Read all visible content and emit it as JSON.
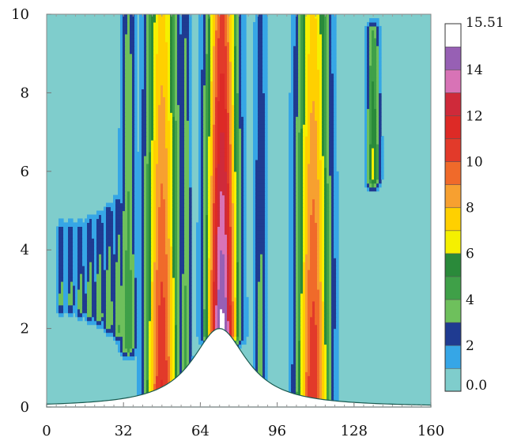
{
  "chart_data": {
    "type": "contour",
    "title": "",
    "xlabel": "",
    "ylabel": "",
    "xlim": [
      0,
      160
    ],
    "ylim": [
      0,
      10
    ],
    "x_ticks": [
      "0",
      "32",
      "64",
      "96",
      "128",
      "160"
    ],
    "y_ticks": [
      "0",
      "2",
      "4",
      "6",
      "8",
      "10"
    ],
    "terrain": {
      "shape": "bell-shaped hill",
      "center_x": 72,
      "peak_height": 2.0
    },
    "colorbar": {
      "position": "right",
      "min": 0.0,
      "max": 15.51,
      "tick_labels": [
        "0.0",
        "2",
        "4",
        "6",
        "8",
        "10",
        "12",
        "14",
        "15.51"
      ],
      "levels": [
        0,
        1,
        2,
        3,
        4,
        5,
        6,
        7,
        8,
        9,
        10,
        11,
        12,
        13,
        14,
        15,
        15.51
      ],
      "colors": [
        "#7fcdcc",
        "#36a6e6",
        "#1f3b91",
        "#6ec05c",
        "#3fa048",
        "#2a8a3a",
        "#f5f000",
        "#ffd000",
        "#f7a030",
        "#f06a2a",
        "#e23a2a",
        "#dd2a26",
        "#cf2a3a",
        "#d873b6",
        "#9760b4",
        "#ffffff"
      ]
    },
    "bands": [
      {
        "center_x": 6,
        "width": 1.3,
        "y_min": 2.6,
        "y_max": 4.6,
        "peak": 3.5
      },
      {
        "center_x": 10,
        "width": 1.4,
        "y_min": 2.6,
        "y_max": 4.6,
        "peak": 3.5
      },
      {
        "center_x": 14,
        "width": 1.5,
        "y_min": 2.5,
        "y_max": 4.6,
        "peak": 3.6
      },
      {
        "center_x": 18,
        "width": 1.6,
        "y_min": 2.4,
        "y_max": 4.7,
        "peak": 3.8
      },
      {
        "center_x": 22,
        "width": 1.7,
        "y_min": 2.3,
        "y_max": 4.8,
        "peak": 3.9
      },
      {
        "center_x": 26,
        "width": 1.8,
        "y_min": 2.1,
        "y_max": 5.0,
        "peak": 4.0
      },
      {
        "center_x": 30,
        "width": 1.9,
        "y_min": 1.9,
        "y_max": 5.2,
        "peak": 4.1
      },
      {
        "center_x": 34,
        "width": 2.4,
        "y_min": 1.5,
        "y_max": 10.0,
        "peak": 4.8
      },
      {
        "center_x": 48,
        "width": 4.8,
        "y_min": 0.2,
        "y_max": 10.0,
        "peak": 11.2
      },
      {
        "center_x": 58,
        "width": 1.6,
        "y_min": 0.3,
        "y_max": 10.0,
        "peak": 4.5
      },
      {
        "center_x": 73,
        "width": 4.5,
        "y_min": 1.8,
        "y_max": 10.0,
        "peak": 15.51
      },
      {
        "center_x": 89,
        "width": 2.0,
        "y_min": 0.4,
        "y_max": 10.0,
        "peak": 3.5
      },
      {
        "center_x": 111,
        "width": 4.8,
        "y_min": 0.2,
        "y_max": 10.0,
        "peak": 11.0
      },
      {
        "center_x": 119,
        "width": 1.4,
        "y_min": 2.0,
        "y_max": 10.0,
        "peak": 2.8
      },
      {
        "center_x": 136,
        "width": 2.0,
        "y_min": 5.8,
        "y_max": 9.6,
        "peak": 6.5
      }
    ]
  }
}
